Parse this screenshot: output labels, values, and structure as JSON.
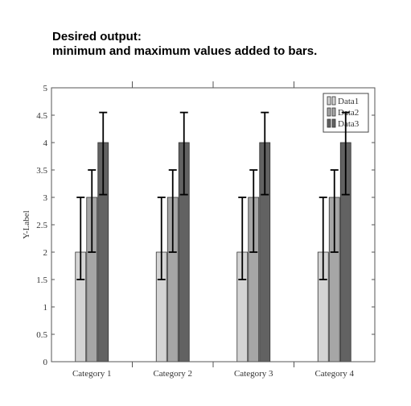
{
  "heading": {
    "line1": "Desired output:",
    "line2": "minimum and maximum values added to bars."
  },
  "chart_data": {
    "type": "bar",
    "title": "",
    "xlabel": "",
    "ylabel": "Y-Label",
    "ylim": [
      0,
      5
    ],
    "yticks": [
      "0",
      "0.5",
      "1",
      "1.5",
      "2",
      "2.5",
      "3",
      "3.5",
      "4",
      "4.5",
      "5"
    ],
    "categories": [
      "Category 1",
      "Category 2",
      "Category 3",
      "Category 4"
    ],
    "series": [
      {
        "name": "Data1",
        "values": [
          2,
          2,
          2,
          2
        ],
        "min": [
          1.5,
          1.5,
          1.5,
          1.5
        ],
        "max": [
          3,
          3,
          3,
          3
        ],
        "color": "#d4d4d4"
      },
      {
        "name": "Data2",
        "values": [
          3,
          3,
          3,
          3
        ],
        "min": [
          2,
          2,
          2,
          2
        ],
        "max": [
          3.5,
          3.5,
          3.5,
          3.5
        ],
        "color": "#a6a6a6"
      },
      {
        "name": "Data3",
        "values": [
          4,
          4,
          4,
          4
        ],
        "min": [
          3.05,
          3.05,
          3.05,
          3.05
        ],
        "max": [
          4.55,
          4.55,
          4.55,
          4.55
        ],
        "color": "#626262"
      }
    ],
    "grid": false,
    "legend_position": "top-right",
    "error_bar_color": "#000000"
  }
}
